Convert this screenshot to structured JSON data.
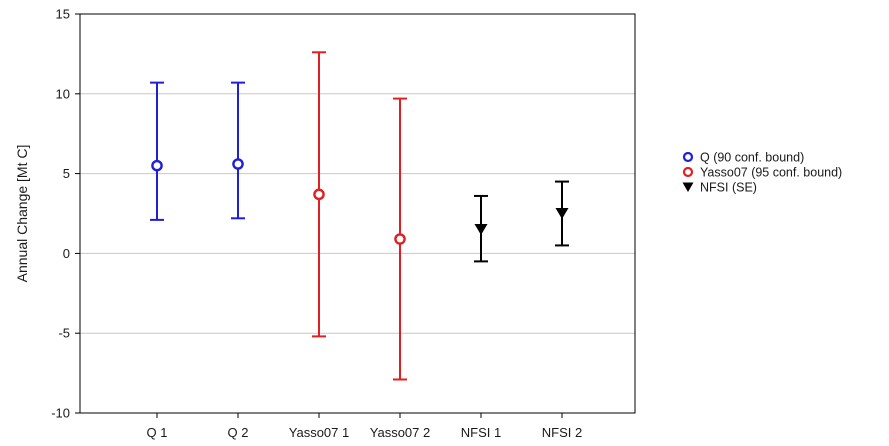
{
  "chart_data": {
    "type": "scatter",
    "title": "",
    "xlabel": "",
    "ylabel": "Annual Change   [Mt C]",
    "ylim": [
      -10,
      15
    ],
    "yticks": [
      -10,
      -5,
      0,
      5,
      10,
      15
    ],
    "grid": true,
    "legend_position": "right",
    "categories": [
      "Q 1",
      "Q 2",
      "Yasso07 1",
      "Yasso07 2",
      "NFSI 1",
      "NFSI 2"
    ],
    "series": [
      {
        "name": "Q (90 conf. bound)",
        "marker": "open-circle",
        "color": "#1f1fd6",
        "points": [
          {
            "category": "Q 1",
            "value": 5.5,
            "lower": 2.1,
            "upper": 10.7
          },
          {
            "category": "Q 2",
            "value": 5.6,
            "lower": 2.2,
            "upper": 10.7
          }
        ]
      },
      {
        "name": "Yasso07 (95 conf. bound)",
        "marker": "open-circle",
        "color": "#e02020",
        "points": [
          {
            "category": "Yasso07 1",
            "value": 3.7,
            "lower": -5.2,
            "upper": 12.6
          },
          {
            "category": "Yasso07 2",
            "value": 0.9,
            "lower": -7.9,
            "upper": 9.7
          }
        ]
      },
      {
        "name": "NFSI (SE)",
        "marker": "filled-triangle-down",
        "color": "#000000",
        "points": [
          {
            "category": "NFSI 1",
            "value": 1.5,
            "lower": -0.5,
            "upper": 3.6
          },
          {
            "category": "NFSI 2",
            "value": 2.5,
            "lower": 0.5,
            "upper": 4.5
          }
        ]
      }
    ]
  }
}
